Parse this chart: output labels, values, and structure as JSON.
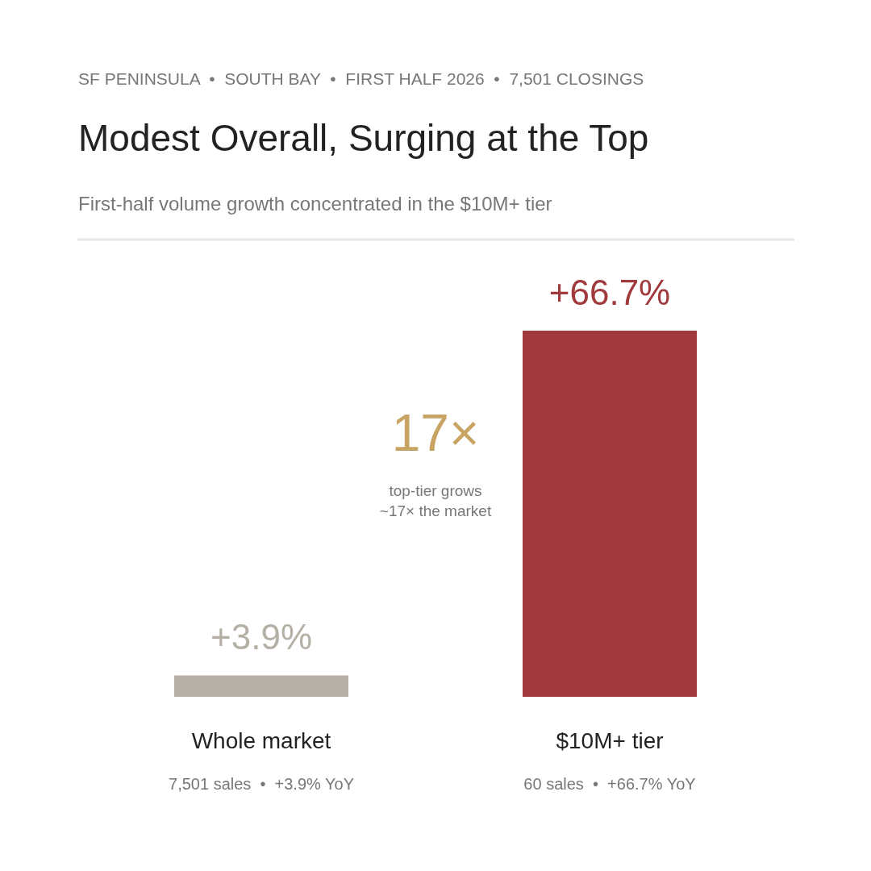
{
  "chart_data": {
    "type": "bar",
    "title": "Modest Overall, Surging at the Top",
    "subtitle": "First-half volume growth concentrated in the $10M+ tier",
    "categories": [
      "Whole market",
      "$10M+ tier"
    ],
    "values": [
      3.9,
      66.7
    ],
    "colors": [
      "#b5b0a5",
      "#a03a3c"
    ],
    "value_labels": [
      "+3.9%",
      "+66.7%"
    ],
    "annotations": [
      "SF PENINSULA  •  SOUTH BAY  •  FIRST HALF 2026  •  7,501 CLOSINGS",
      "17×",
      "top-tier grows\n~17× the market",
      "7,501 sales  •  +3.9% YoY",
      "60 sales  •  +66.7% YoY"
    ]
  }
}
